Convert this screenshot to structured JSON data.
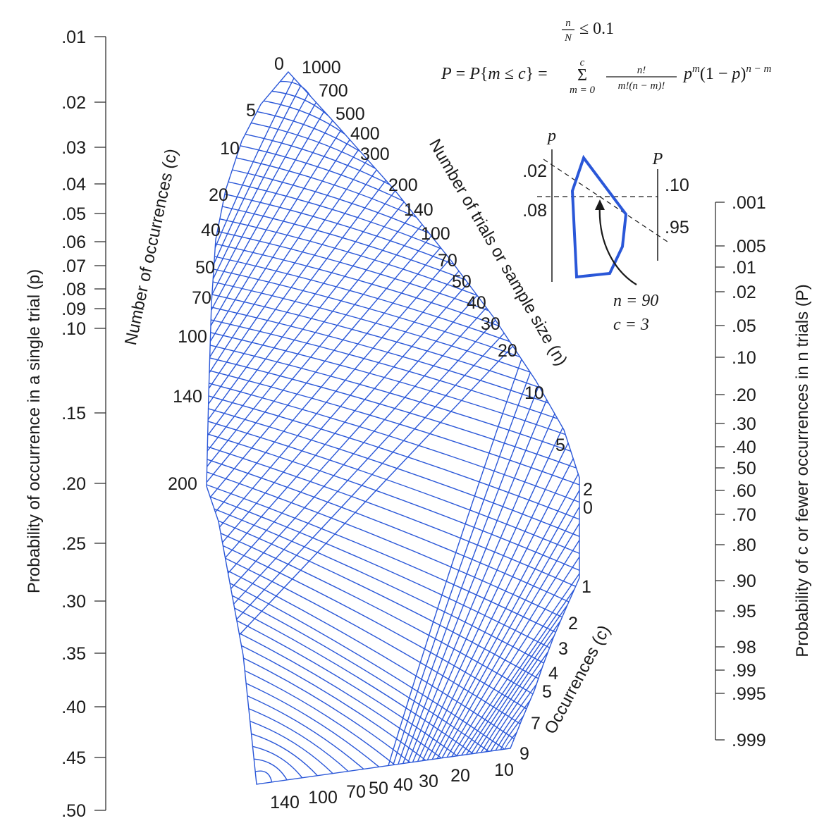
{
  "left_axis": {
    "title": "Probability of occurrence in a single trial (p)",
    "ticks": [
      ".01",
      ".02",
      ".03",
      ".04",
      ".05",
      ".06",
      ".07",
      ".08",
      ".09",
      ".10",
      ".15",
      ".20",
      ".25",
      ".30",
      ".35",
      ".40",
      ".45",
      ".50"
    ]
  },
  "right_axis": {
    "title": "Probability of c or fewer occurrences in n trials (P)",
    "ticks": [
      ".001",
      ".005",
      ".01",
      ".02",
      ".05",
      ".10",
      ".20",
      ".30",
      ".40",
      ".50",
      ".60",
      ".70",
      ".80",
      ".90",
      ".95",
      ".98",
      ".99",
      ".995",
      ".999"
    ]
  },
  "formula": {
    "condition": "n/N ≤ 0.1",
    "main": "P = P{m ≤ c} = Σ n!/(m!(n − m)!) p^m (1 − p)^(n − m)",
    "sum_upper": "c",
    "sum_lower": "m = 0"
  },
  "grid": {
    "occurrences_title": "Number of occurrences (c)",
    "occurrences_labels": [
      "0",
      "5",
      "10",
      "20",
      "40",
      "50",
      "70",
      "100",
      "140",
      "200"
    ],
    "sample_size_title": "Number of trials or sample size (n)",
    "sample_size_labels": [
      "1000",
      "700",
      "500",
      "400",
      "300",
      "200",
      "140",
      "100",
      "70",
      "50",
      "40",
      "30",
      "20",
      "10",
      "5",
      "2"
    ],
    "bottom_labels": [
      "140",
      "100",
      "70",
      "50",
      "40",
      "30",
      "20",
      "10",
      "9"
    ],
    "right_occurrences_title": "Occurrences (c)",
    "right_occurrences_labels": [
      "0",
      "1",
      "2",
      "3",
      "4",
      "5",
      "7"
    ]
  },
  "inset": {
    "p_label": "p",
    "P_label": "P",
    "p_ticks": [
      ".02",
      ".08"
    ],
    "P_ticks": [
      ".10",
      ".95"
    ],
    "example_n": "n = 90",
    "example_c": "c = 3"
  },
  "colors": {
    "grid": "#2a57d8",
    "ink": "#1a1a1a"
  }
}
